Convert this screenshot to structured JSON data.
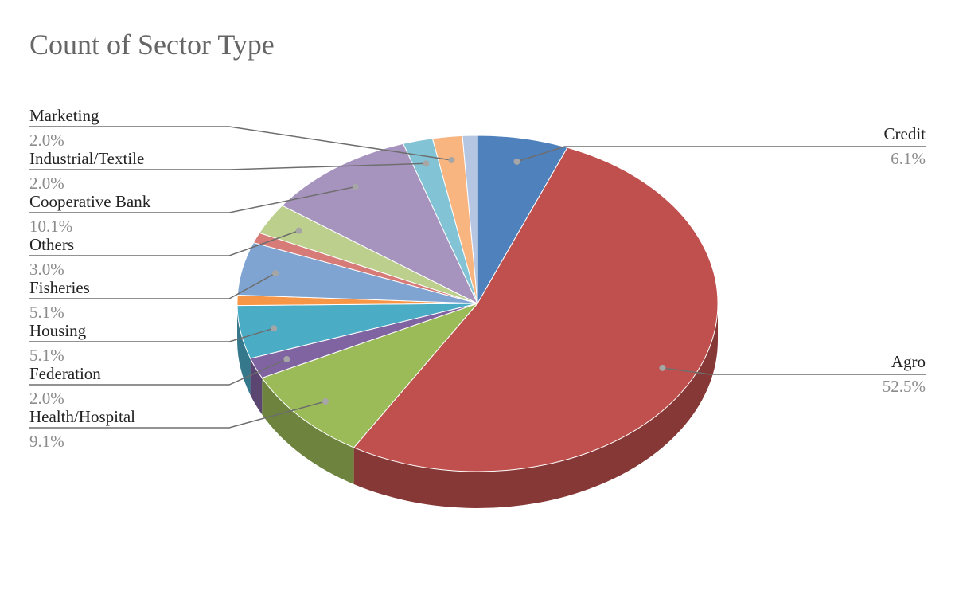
{
  "chart_data": {
    "type": "pie",
    "title": "Count of Sector Type",
    "style": "3d",
    "slices": [
      {
        "label": "Credit",
        "value": 6.1,
        "display": "6.1%",
        "color": "#4f81bd",
        "side": "right"
      },
      {
        "label": "Agro",
        "value": 52.5,
        "display": "52.5%",
        "color": "#c0504d",
        "side": "right"
      },
      {
        "label": "Health/Hospital",
        "value": 9.1,
        "display": "9.1%",
        "color": "#9bbb59",
        "side": "left"
      },
      {
        "label": "Federation",
        "value": 2.0,
        "display": "2.0%",
        "color": "#8064a2",
        "side": "left"
      },
      {
        "label": "Housing",
        "value": 5.1,
        "display": "5.1%",
        "color": "#4bacc6",
        "side": "left"
      },
      {
        "label": "",
        "value": 1.0,
        "display": "",
        "color": "#f79646",
        "side": "none"
      },
      {
        "label": "Fisheries",
        "value": 5.1,
        "display": "5.1%",
        "color": "#7fa4d1",
        "side": "left"
      },
      {
        "label": "",
        "value": 1.0,
        "display": "",
        "color": "#d67b78",
        "side": "none"
      },
      {
        "label": "Others",
        "value": 3.0,
        "display": "3.0%",
        "color": "#bccf8d",
        "side": "left"
      },
      {
        "label": "Cooperative Bank",
        "value": 10.1,
        "display": "10.1%",
        "color": "#a694bf",
        "side": "left"
      },
      {
        "label": "Industrial/Textile",
        "value": 2.0,
        "display": "2.0%",
        "color": "#82c4d6",
        "side": "left"
      },
      {
        "label": "Marketing",
        "value": 2.0,
        "display": "2.0%",
        "color": "#f8b580",
        "side": "left"
      },
      {
        "label": "",
        "value": 1.0,
        "display": "",
        "color": "#b4c6e2",
        "side": "none"
      }
    ]
  }
}
